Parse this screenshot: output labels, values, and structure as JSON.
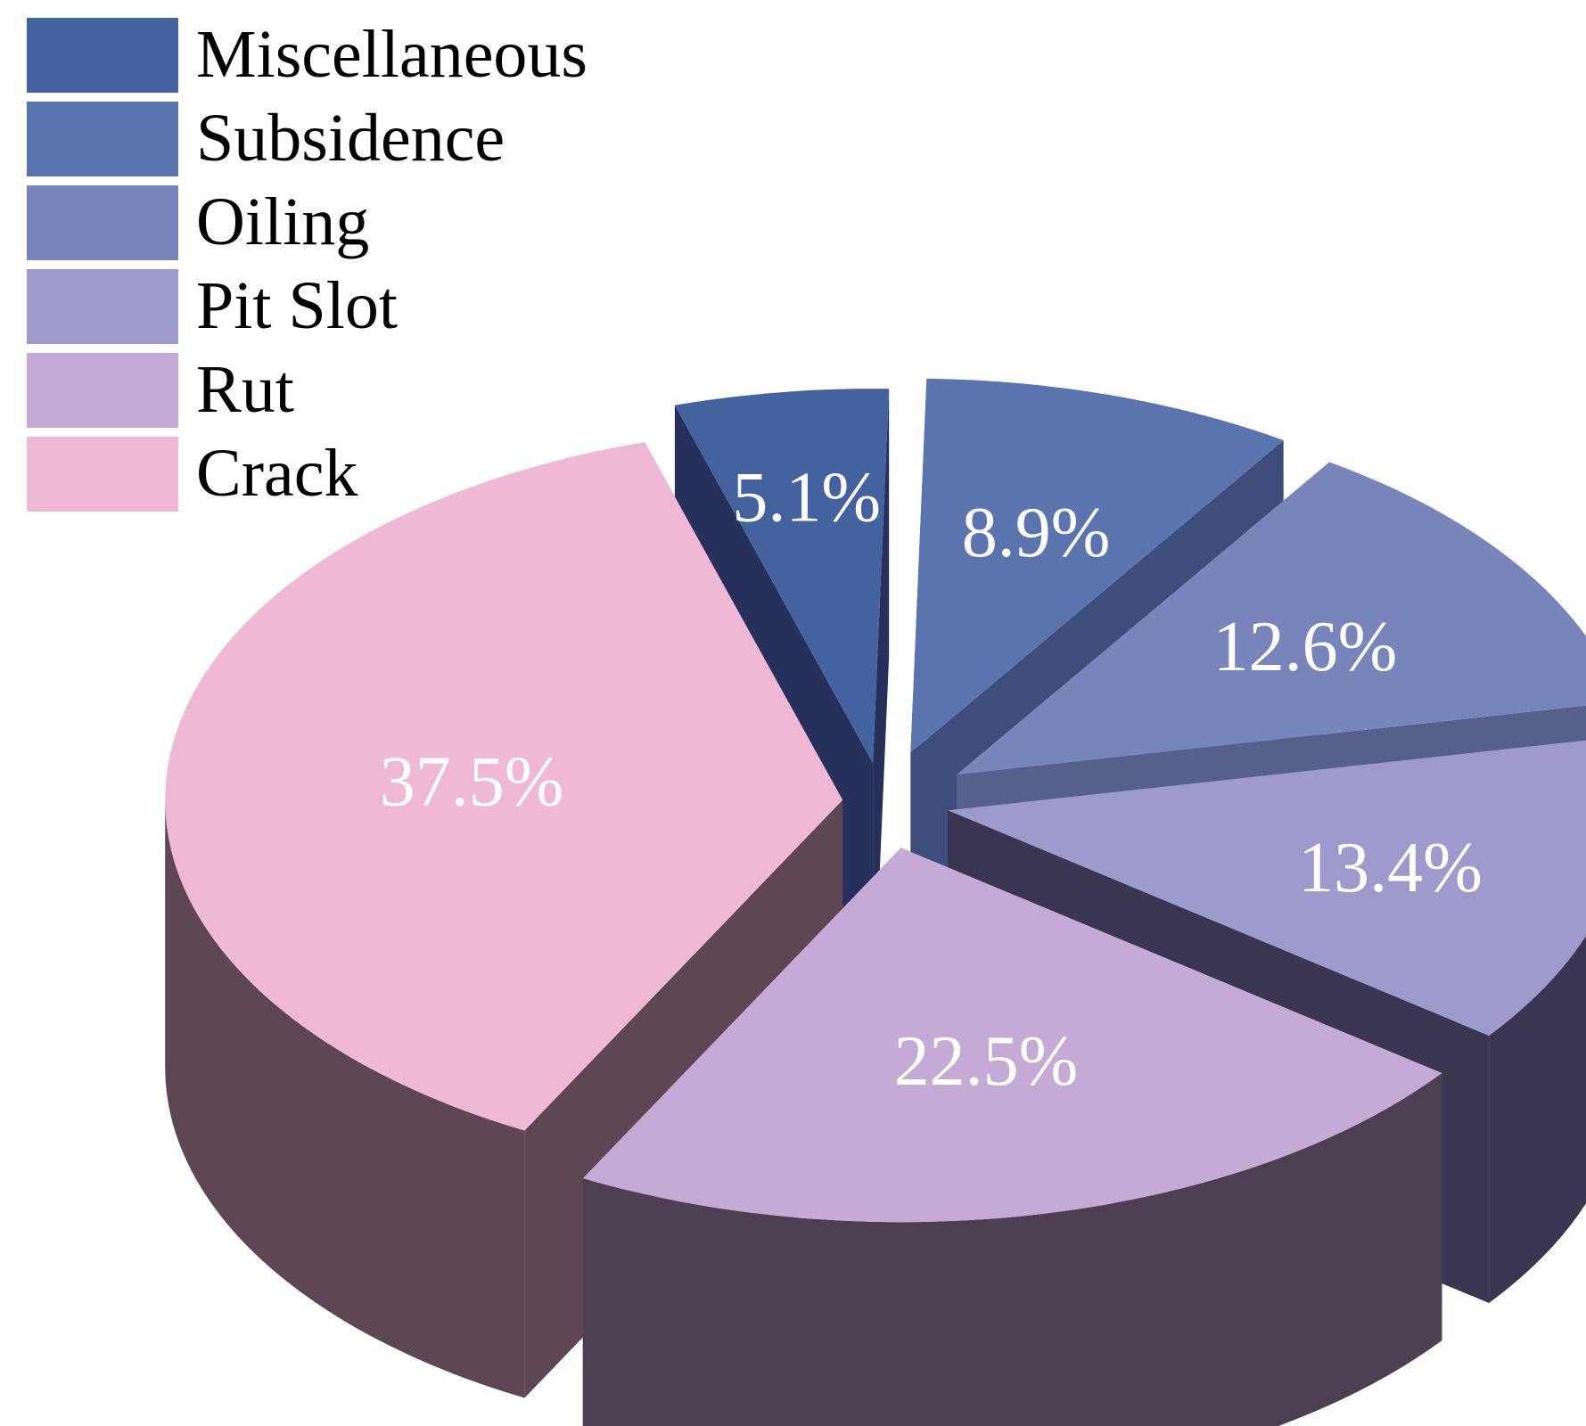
{
  "chart_data": {
    "type": "pie",
    "variant": "3d-exploded",
    "categories": [
      "Miscellaneous",
      "Subsidence",
      "Oiling",
      "Pit Slot",
      "Rut",
      "Crack"
    ],
    "values": [
      5.1,
      8.9,
      12.6,
      13.4,
      22.5,
      37.5
    ],
    "labels": [
      "5.1%",
      "8.9%",
      "12.6%",
      "13.4%",
      "22.5%",
      "37.5%"
    ],
    "colors": [
      "#44629d",
      "#5b74ae",
      "#7785bb",
      "#9e9acc",
      "#c4aad4",
      "#efb8d4"
    ],
    "side_colors": [
      "#26305a",
      "#3d4d7c",
      "#55608b",
      "#3a3550",
      "#4d3f52",
      "#5e4655"
    ],
    "legend": {
      "position": "top-left",
      "entries": [
        "Miscellaneous",
        "Subsidence",
        "Oiling",
        "Pit Slot",
        "Rut",
        "Crack"
      ]
    },
    "title": ""
  }
}
